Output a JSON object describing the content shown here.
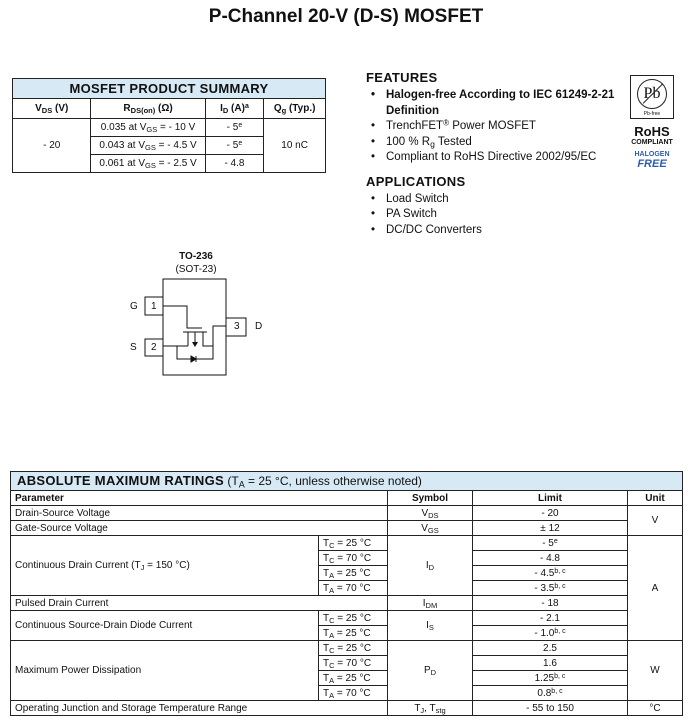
{
  "title": "P-Channel 20-V (D-S) MOSFET",
  "summary": {
    "title": "MOSFET PRODUCT SUMMARY",
    "headers": [
      {
        "t": "V",
        "sub": "DS",
        "tail": " (V)"
      },
      {
        "t": "R",
        "sub": "DS(on)",
        "tail": " (Ω)"
      },
      {
        "t": "I",
        "sub": "D",
        "tail": " (A)",
        "sup": "a"
      },
      {
        "t": "Q",
        "sub": "g",
        "tail": " (Typ.)"
      }
    ],
    "vds": "- 20",
    "qg": "10 nC",
    "rows": [
      {
        "r": "0.035 at V",
        "rsub": "GS",
        "rtail": " = - 10 V",
        "id": "- 5",
        "idsup": "e"
      },
      {
        "r": "0.043 at V",
        "rsub": "GS",
        "rtail": " = - 4.5 V",
        "id": "- 5",
        "idsup": "e"
      },
      {
        "r": "0.061 at V",
        "rsub": "GS",
        "rtail": " = - 2.5 V",
        "id": "- 4.8",
        "idsup": ""
      }
    ]
  },
  "features": {
    "title": "FEATURES",
    "items": [
      {
        "t": "Halogen-free According to IEC 61249-2-21 Definition"
      },
      {
        "t": "TrenchFET",
        "sup": "®",
        "tail": " Power MOSFET"
      },
      {
        "t": "100 % R",
        "sub": "g",
        "tail": " Tested"
      },
      {
        "t": "Compliant to RoHS Directive 2002/95/EC"
      }
    ]
  },
  "applications": {
    "title": "APPLICATIONS",
    "items": [
      "Load Switch",
      "PA Switch",
      "DC/DC Converters"
    ]
  },
  "badges": {
    "pb": "Pb",
    "pbfree": "Pb-free",
    "rohs": "RoHS",
    "compliant": "COMPLIANT",
    "halogen": "HALOGEN",
    "free": "FREE",
    "free_color": "#2a5db0"
  },
  "package": {
    "name": "TO-236",
    "alt": "(SOT-23)",
    "pins": {
      "g": "G",
      "s": "S",
      "d": "D",
      "p1": "1",
      "p2": "2",
      "p3": "3"
    }
  },
  "ratings": {
    "title": "ABSOLUTE MAXIMUM RATINGS",
    "cond_pre": " (T",
    "cond_sub": "A",
    "cond_tail": " = 25 °C, unless otherwise noted)",
    "headers": [
      "Parameter",
      "Symbol",
      "Limit",
      "Unit"
    ],
    "vds": {
      "p": "Drain-Source Voltage",
      "s": "V",
      "ss": "DS",
      "l": "- 20"
    },
    "vgs": {
      "p": "Gate-Source Voltage",
      "s": "V",
      "ss": "GS",
      "l": "± 12"
    },
    "unit_v": "V",
    "id": {
      "p": "Continuous Drain Current (T",
      "psub": "J",
      "ptail": " = 150 °C)",
      "s": "I",
      "ss": "D",
      "rows": [
        {
          "c": "T",
          "cs": "C",
          "ct": " = 25 °C",
          "l": "- 5",
          "ls": "e"
        },
        {
          "c": "T",
          "cs": "C",
          "ct": " = 70 °C",
          "l": "- 4.8",
          "ls": ""
        },
        {
          "c": "T",
          "cs": "A",
          "ct": " = 25 °C",
          "l": "- 4.5",
          "ls": "b, c"
        },
        {
          "c": "T",
          "cs": "A",
          "ct": " = 70 °C",
          "l": "- 3.5",
          "ls": "b, c"
        }
      ]
    },
    "unit_a": "A",
    "idm": {
      "p": "Pulsed Drain Current",
      "s": "I",
      "ss": "DM",
      "l": "- 18"
    },
    "is": {
      "p": "Continuous Source-Drain Diode Current",
      "s": "I",
      "ss": "S",
      "rows": [
        {
          "c": "T",
          "cs": "C",
          "ct": " = 25 °C",
          "l": "- 2.1",
          "ls": ""
        },
        {
          "c": "T",
          "cs": "A",
          "ct": " = 25 °C",
          "l": "- 1.0",
          "ls": "b, c"
        }
      ]
    },
    "pd": {
      "p": "Maximum Power Dissipation",
      "s": "P",
      "ss": "D",
      "rows": [
        {
          "c": "T",
          "cs": "C",
          "ct": " = 25 °C",
          "l": "2.5",
          "ls": ""
        },
        {
          "c": "T",
          "cs": "C",
          "ct": " = 70 °C",
          "l": "1.6",
          "ls": ""
        },
        {
          "c": "T",
          "cs": "A",
          "ct": " = 25 °C",
          "l": "1.25",
          "ls": "b, c"
        },
        {
          "c": "T",
          "cs": "A",
          "ct": " = 70 °C",
          "l": "0.8",
          "ls": "b, c"
        }
      ]
    },
    "unit_w": "W",
    "tj": {
      "p": "Operating Junction and Storage Temperature Range",
      "s": "T",
      "ss": "J",
      "s2": ", T",
      "ss2": "stg",
      "l": "- 55 to 150"
    },
    "unit_c": "°C"
  }
}
